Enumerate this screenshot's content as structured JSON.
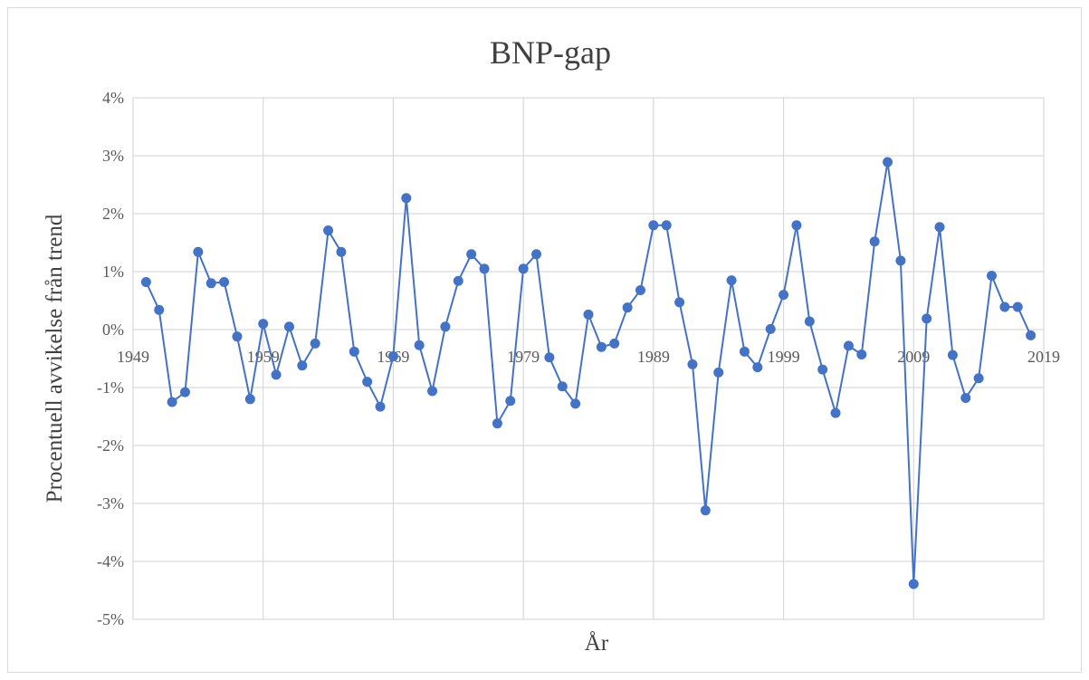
{
  "chart_data": {
    "type": "line",
    "title": "BNP-gap",
    "xlabel": "År",
    "ylabel": "Procentuell avvikelse från trend",
    "xlim": [
      1949,
      2019
    ],
    "ylim": [
      -5,
      4
    ],
    "y_ticks": [
      "4%",
      "3%",
      "2%",
      "1%",
      "0%",
      "-1%",
      "-2%",
      "-3%",
      "-4%",
      "-5%"
    ],
    "x_ticks": [
      "1949",
      "1959",
      "1969",
      "1979",
      "1989",
      "1999",
      "2009",
      "2019"
    ],
    "grid": true,
    "legend": "none",
    "color": "#4472c4",
    "series": [
      {
        "x": [
          1950,
          1951,
          1952,
          1953,
          1954,
          1955,
          1956,
          1957,
          1958,
          1959,
          1960,
          1961,
          1962,
          1963,
          1964,
          1965,
          1966,
          1967,
          1968,
          1969,
          1970,
          1971,
          1972,
          1973,
          1974,
          1975,
          1976,
          1977,
          1978,
          1979,
          1980,
          1981,
          1982,
          1983,
          1984,
          1985,
          1986,
          1987,
          1988,
          1989,
          1990,
          1991,
          1992,
          1993,
          1994,
          1995,
          1996,
          1997,
          1998,
          1999,
          2000,
          2001,
          2002,
          2003,
          2004,
          2005,
          2006,
          2007,
          2008,
          2009,
          2010,
          2011,
          2012,
          2013,
          2014,
          2015,
          2016,
          2017,
          2018
        ],
        "values": [
          0.82,
          0.34,
          -1.25,
          -1.08,
          1.34,
          0.8,
          0.82,
          -0.12,
          -1.2,
          0.1,
          -0.78,
          0.05,
          -0.62,
          -0.24,
          1.71,
          1.34,
          -0.38,
          -0.9,
          -1.33,
          -0.46,
          2.27,
          -0.27,
          -1.06,
          0.05,
          0.84,
          1.3,
          1.05,
          -1.62,
          -1.23,
          1.05,
          1.3,
          -0.48,
          -0.98,
          -1.28,
          0.26,
          -0.3,
          -0.24,
          0.38,
          0.68,
          1.8,
          1.8,
          0.47,
          -0.6,
          -3.12,
          -0.74,
          0.85,
          -0.38,
          -0.65,
          0.01,
          0.6,
          1.8,
          0.14,
          -0.69,
          -1.44,
          -0.28,
          -0.43,
          1.52,
          2.89,
          1.19,
          -4.39,
          0.19,
          1.77,
          -0.44,
          -1.18,
          -0.84,
          0.93,
          0.39,
          0.39,
          -0.1
        ]
      }
    ]
  }
}
